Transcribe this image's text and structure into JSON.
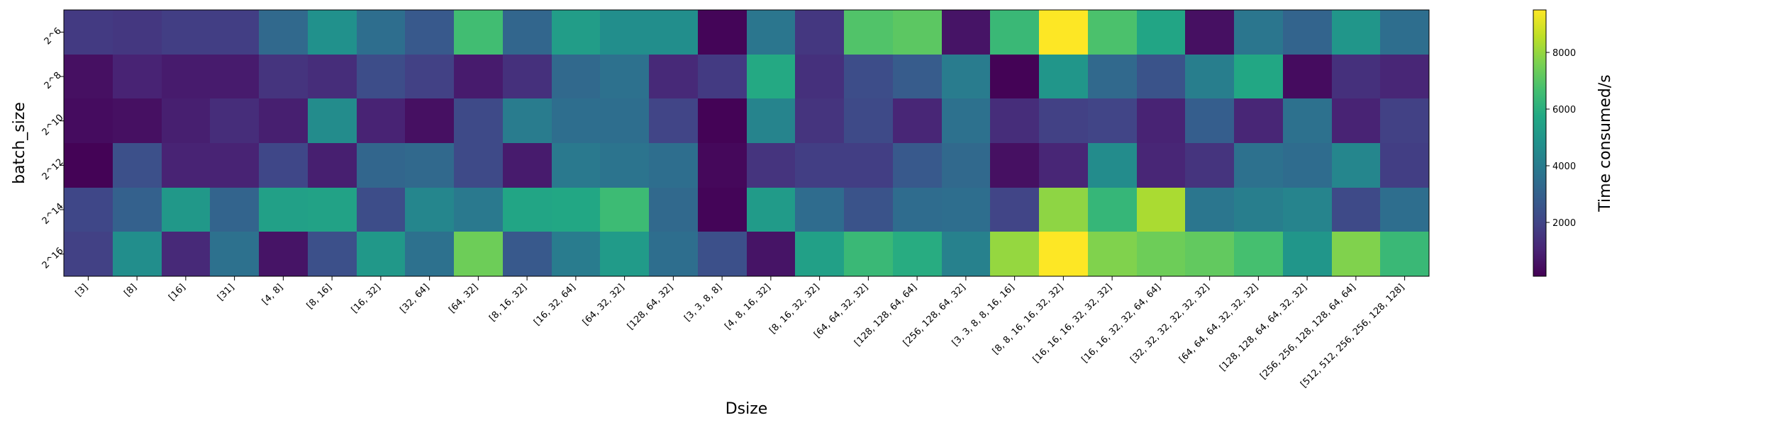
{
  "chart_data": {
    "type": "heatmap",
    "xlabel": "Dsize",
    "ylabel": "batch_size",
    "colorbar_label": "Time consumed/s",
    "colormap": "viridis",
    "color_range": [
      100,
      9500
    ],
    "colorbar_ticks": [
      2000,
      4000,
      6000,
      8000
    ],
    "x_categories": [
      "[3]",
      "[8]",
      "[16]",
      "[31]",
      "[4, 8]",
      "[8, 16]",
      "[16, 32]",
      "[32, 64]",
      "[64, 32]",
      "[8, 16, 32]",
      "[16, 32, 64]",
      "[64, 32, 32]",
      "[128, 64, 32]",
      "[3, 3, 8, 8]",
      "[4, 8, 16, 32]",
      "[8, 16, 32, 32]",
      "[64, 64, 32, 32]",
      "[128, 128, 64, 64]",
      "[256, 128, 64, 32]",
      "[3, 3, 8, 8, 16, 16]",
      "[8, 8, 16, 16, 32, 32]",
      "[16, 16, 16, 32, 32, 32]",
      "[16, 16, 32, 32, 64, 64]",
      "[32, 32, 32, 32, 32, 32]",
      "[64, 64, 64, 32, 32, 32]",
      "[128, 128, 64, 64, 32, 32]",
      "[256, 256, 128, 128, 64, 64]",
      "[512, 512, 256, 256, 128, 128]"
    ],
    "y_categories": [
      "2^6",
      "2^8",
      "2^10",
      "2^12",
      "2^14",
      "2^16"
    ],
    "values": [
      [
        1700,
        1600,
        1800,
        1800,
        3300,
        4800,
        3500,
        2700,
        6600,
        3200,
        5300,
        4700,
        4700,
        200,
        3800,
        1600,
        6900,
        7100,
        600,
        6400,
        9500,
        6800,
        5600,
        500,
        3800,
        3100,
        5000,
        3500
      ],
      [
        500,
        1000,
        800,
        800,
        1500,
        1300,
        2300,
        1900,
        800,
        1400,
        3300,
        3600,
        1200,
        1700,
        5800,
        1400,
        2300,
        2800,
        4000,
        150,
        5000,
        3300,
        2500,
        4100,
        5700,
        400,
        1400,
        1100
      ],
      [
        400,
        500,
        900,
        1300,
        900,
        4600,
        1000,
        500,
        2200,
        4000,
        3500,
        3500,
        2000,
        150,
        4300,
        1500,
        2200,
        1100,
        3600,
        1300,
        1900,
        2000,
        1000,
        2900,
        1100,
        3600,
        1000,
        1900
      ],
      [
        150,
        2400,
        1000,
        1000,
        2100,
        900,
        3200,
        3300,
        2200,
        800,
        3900,
        3700,
        3500,
        300,
        1500,
        1800,
        1800,
        2700,
        3300,
        500,
        1100,
        4600,
        1100,
        1500,
        3600,
        3400,
        4400,
        1800
      ],
      [
        2100,
        3000,
        5100,
        3100,
        5400,
        5500,
        2300,
        4400,
        3900,
        5600,
        5700,
        6500,
        3300,
        200,
        5200,
        3400,
        2500,
        3400,
        3500,
        2000,
        7900,
        6300,
        8300,
        3800,
        4100,
        4300,
        2200,
        3500
      ],
      [
        1900,
        4700,
        1200,
        3600,
        600,
        2400,
        5100,
        3600,
        7400,
        2700,
        4000,
        5200,
        3500,
        2400,
        600,
        5400,
        6400,
        5900,
        4200,
        8000,
        9500,
        7700,
        7400,
        7200,
        6700,
        5000,
        7700,
        6400
      ]
    ]
  }
}
